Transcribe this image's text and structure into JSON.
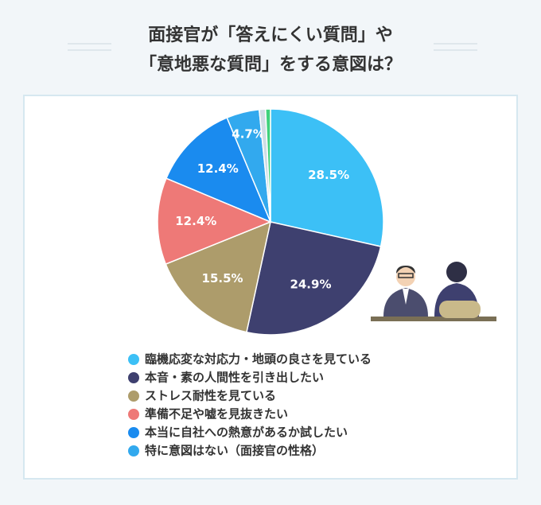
{
  "chart_data": {
    "type": "pie",
    "title_lines": [
      "面接官が「答えにくい質問」や",
      "「意地悪な質問」をする意図は？"
    ],
    "categories": [
      "臨機応変な対応力・地頭の良さを見ている",
      "本音・素の人間性を引き出したい",
      "ストレス耐性を見ている",
      "準備不足や嘘を見抜きたい",
      "本当に自社への熱意があるか試したい",
      "特に意図はない（面接官の性格）",
      null,
      null
    ],
    "values": [
      28.5,
      24.9,
      15.5,
      12.4,
      12.4,
      4.7,
      0.9,
      0.7
    ],
    "value_labels": [
      "28.5%",
      "24.9%",
      "15.5%",
      "12.4%",
      "12.4%",
      "4.7%",
      null,
      null
    ],
    "colors": [
      "#3cc0f6",
      "#3e406f",
      "#ad9c6b",
      "#ee7977",
      "#1a8bef",
      "#32a9ee",
      "#cfdde5",
      "#3fd27c"
    ],
    "start_angle": 0,
    "direction": "clockwise"
  }
}
